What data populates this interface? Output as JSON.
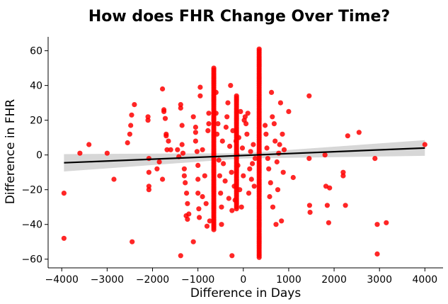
{
  "chart_data": {
    "type": "scatter",
    "title": "How does FHR Change Over Time?",
    "xlabel": "Difference in Days",
    "ylabel": "Difference in FHR",
    "xlim": [
      -4300,
      4400
    ],
    "ylim": [
      -65,
      68
    ],
    "xticks": [
      -4000,
      -3000,
      -2000,
      -1000,
      0,
      1000,
      2000,
      3000,
      4000
    ],
    "yticks": [
      -60,
      -40,
      -20,
      0,
      20,
      40,
      60
    ],
    "grid": false,
    "point_color": "#ff0000",
    "regression": {
      "color": "#000000",
      "ci_color": "#d3d3d3",
      "line": [
        [
          -3950,
          -4.5
        ],
        [
          4000,
          4.0
        ]
      ],
      "ci_upper": [
        [
          -3950,
          0.5
        ],
        [
          0,
          1.0
        ],
        [
          4000,
          8.5
        ]
      ],
      "ci_lower": [
        [
          -3950,
          -9.5
        ],
        [
          0,
          -2.0
        ],
        [
          4000,
          -0.5
        ]
      ]
    },
    "points": [
      [
        -3950,
        -22
      ],
      [
        -3950,
        -48
      ],
      [
        -3600,
        1
      ],
      [
        -3400,
        6
      ],
      [
        -3000,
        1
      ],
      [
        -2850,
        -14
      ],
      [
        -2550,
        7
      ],
      [
        -2500,
        12
      ],
      [
        -2480,
        17
      ],
      [
        -2460,
        23
      ],
      [
        -2400,
        29
      ],
      [
        -2450,
        -50
      ],
      [
        -2100,
        22
      ],
      [
        -2100,
        20
      ],
      [
        -2080,
        -2
      ],
      [
        -2080,
        -10
      ],
      [
        -2080,
        -18
      ],
      [
        -2080,
        -20
      ],
      [
        -1900,
        -8
      ],
      [
        -1850,
        -4
      ],
      [
        -1780,
        38
      ],
      [
        -1750,
        26
      ],
      [
        -1750,
        25
      ],
      [
        -1720,
        21
      ],
      [
        -1700,
        12
      ],
      [
        -1700,
        11
      ],
      [
        -1680,
        3
      ],
      [
        -1650,
        8
      ],
      [
        -1600,
        3
      ],
      [
        -1780,
        -14
      ],
      [
        -1450,
        3
      ],
      [
        -1420,
        -1
      ],
      [
        -1380,
        29
      ],
      [
        -1380,
        27
      ],
      [
        -1350,
        17
      ],
      [
        -1350,
        6
      ],
      [
        -1330,
        1
      ],
      [
        -1300,
        -8
      ],
      [
        -1300,
        -12
      ],
      [
        -1280,
        -16
      ],
      [
        -1250,
        -22
      ],
      [
        -1230,
        -28
      ],
      [
        -1260,
        -35
      ],
      [
        -1230,
        -37
      ],
      [
        -1380,
        -58
      ],
      [
        -1200,
        -34
      ],
      [
        -1100,
        22
      ],
      [
        -1050,
        13
      ],
      [
        -1050,
        16
      ],
      [
        -1050,
        8
      ],
      [
        -1020,
        2
      ],
      [
        -1000,
        -6
      ],
      [
        -1000,
        -14
      ],
      [
        -1000,
        -22
      ],
      [
        -980,
        -31
      ],
      [
        -970,
        -36
      ],
      [
        -1100,
        -50
      ],
      [
        -950,
        39
      ],
      [
        -950,
        34
      ],
      [
        -900,
        3
      ],
      [
        -850,
        -12
      ],
      [
        -820,
        -28
      ],
      [
        -800,
        -41
      ],
      [
        -780,
        14
      ],
      [
        -760,
        24
      ],
      [
        -760,
        18
      ],
      [
        -740,
        -38
      ],
      [
        -900,
        -24
      ],
      [
        -600,
        36
      ],
      [
        -600,
        24
      ],
      [
        -580,
        12
      ],
      [
        -560,
        18
      ],
      [
        -540,
        -3
      ],
      [
        -520,
        -12
      ],
      [
        -500,
        -22
      ],
      [
        -480,
        -30
      ],
      [
        -480,
        -40
      ],
      [
        -460,
        8
      ],
      [
        -440,
        -5
      ],
      [
        -400,
        -15
      ],
      [
        -380,
        16
      ],
      [
        -360,
        22
      ],
      [
        -340,
        30
      ],
      [
        -320,
        -25
      ],
      [
        -300,
        5
      ],
      [
        -280,
        40
      ],
      [
        -260,
        -10
      ],
      [
        -250,
        -32
      ],
      [
        -250,
        -58
      ],
      [
        -230,
        14
      ],
      [
        -200,
        -18
      ],
      [
        -180,
        -26
      ],
      [
        -160,
        8
      ],
      [
        -140,
        0
      ],
      [
        -120,
        -6
      ],
      [
        -100,
        10
      ],
      [
        -80,
        -20
      ],
      [
        -60,
        25
      ],
      [
        -40,
        -30
      ],
      [
        -20,
        4
      ],
      [
        0,
        -12
      ],
      [
        20,
        20
      ],
      [
        40,
        22
      ],
      [
        60,
        18
      ],
      [
        80,
        12
      ],
      [
        100,
        24
      ],
      [
        120,
        -22
      ],
      [
        140,
        -8
      ],
      [
        160,
        2
      ],
      [
        180,
        -14
      ],
      [
        200,
        -5
      ],
      [
        220,
        6
      ],
      [
        240,
        -18
      ],
      [
        260,
        -2
      ],
      [
        480,
        17
      ],
      [
        500,
        12
      ],
      [
        520,
        4
      ],
      [
        540,
        -2
      ],
      [
        560,
        -8
      ],
      [
        580,
        -24
      ],
      [
        600,
        -16
      ],
      [
        620,
        36
      ],
      [
        640,
        22
      ],
      [
        650,
        -30
      ],
      [
        680,
        18
      ],
      [
        700,
        8
      ],
      [
        720,
        -40
      ],
      [
        740,
        -4
      ],
      [
        760,
        -20
      ],
      [
        780,
        1
      ],
      [
        800,
        6
      ],
      [
        820,
        30
      ],
      [
        840,
        -38
      ],
      [
        860,
        12
      ],
      [
        880,
        -10
      ],
      [
        900,
        3
      ],
      [
        1000,
        25
      ],
      [
        1100,
        -13
      ],
      [
        1450,
        34
      ],
      [
        1450,
        -2
      ],
      [
        1460,
        -29
      ],
      [
        1470,
        -33
      ],
      [
        1800,
        0
      ],
      [
        1820,
        -18
      ],
      [
        1850,
        -29
      ],
      [
        1880,
        -39
      ],
      [
        1900,
        -19
      ],
      [
        2200,
        -10
      ],
      [
        2200,
        -12
      ],
      [
        2250,
        -29
      ],
      [
        2300,
        11
      ],
      [
        2550,
        13
      ],
      [
        2900,
        -2
      ],
      [
        2950,
        -40
      ],
      [
        2950,
        -57
      ],
      [
        3150,
        -39
      ],
      [
        4000,
        6
      ]
    ],
    "dense_columns": [
      {
        "x": -650,
        "ymin": -43,
        "ymax": 50
      },
      {
        "x": -150,
        "ymin": -31,
        "ymax": 34
      },
      {
        "x": 350,
        "ymin": -59,
        "ymax": 61
      }
    ]
  }
}
